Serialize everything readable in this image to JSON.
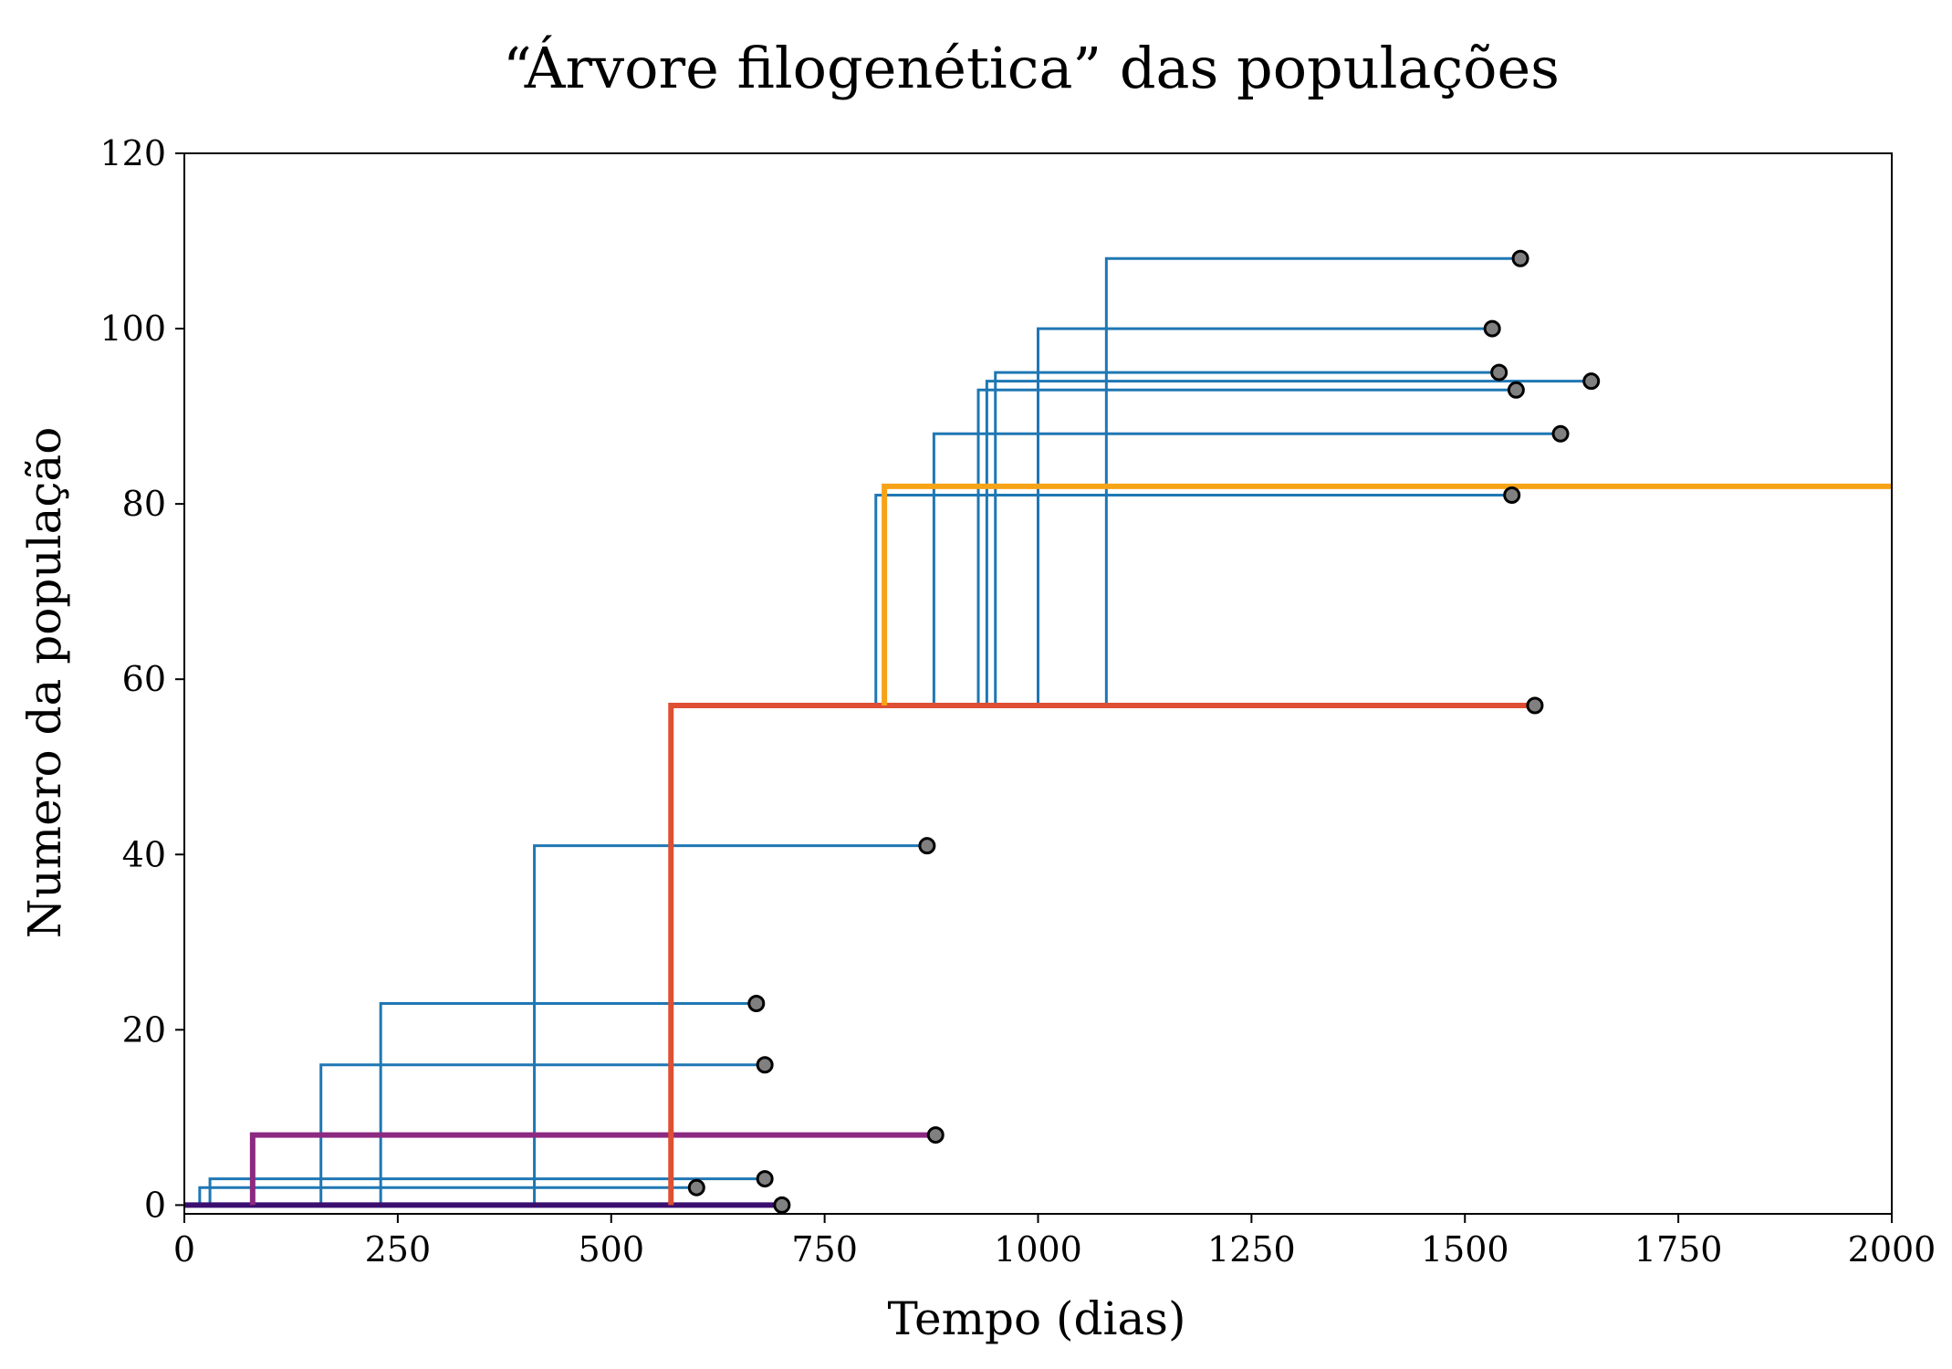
{
  "chart_data": {
    "type": "line",
    "title": "“Árvore filogenética” das populações",
    "xlabel": "Tempo (dias)",
    "ylabel": "Numero da população",
    "xlim": [
      0,
      2000
    ],
    "ylim": [
      -1,
      120
    ],
    "x_ticks": [
      0,
      250,
      500,
      750,
      1000,
      1250,
      1500,
      1750,
      2000
    ],
    "y_ticks": [
      0,
      20,
      40,
      60,
      80,
      100,
      120
    ],
    "grid": false,
    "legend": null,
    "colors": {
      "branch": "#1f77b4",
      "lineage_0": "#3b0f70",
      "lineage_8": "#8c2981",
      "lineage_57": "#de4f33",
      "lineage_82": "#f7a318",
      "endpoint_fill": "#808080",
      "endpoint_edge": "#000000"
    },
    "branches": [
      {
        "parent": 0,
        "child": 2,
        "start": 18,
        "end": 600
      },
      {
        "parent": 0,
        "child": 3,
        "start": 30,
        "end": 680
      },
      {
        "parent": 0,
        "child": 16,
        "start": 160,
        "end": 680
      },
      {
        "parent": 0,
        "child": 23,
        "start": 230,
        "end": 670
      },
      {
        "parent": 0,
        "child": 41,
        "start": 410,
        "end": 870
      },
      {
        "parent": 57,
        "child": 81,
        "start": 810,
        "end": 1555
      },
      {
        "parent": 57,
        "child": 88,
        "start": 878,
        "end": 1612
      },
      {
        "parent": 57,
        "child": 93,
        "start": 930,
        "end": 1560
      },
      {
        "parent": 57,
        "child": 94,
        "start": 940,
        "end": 1648
      },
      {
        "parent": 57,
        "child": 95,
        "start": 950,
        "end": 1540
      },
      {
        "parent": 57,
        "child": 100,
        "start": 1000,
        "end": 1532
      },
      {
        "parent": 57,
        "child": 108,
        "start": 1080,
        "end": 1565
      }
    ],
    "lineage": [
      {
        "parent": null,
        "child": 0,
        "start": 0,
        "end": 700,
        "color": "#3b0f70",
        "ended": true
      },
      {
        "parent": 0,
        "child": 8,
        "start": 80,
        "end": 880,
        "color": "#8c2981",
        "ended": true
      },
      {
        "parent": 0,
        "child": 57,
        "start": 570,
        "end": 1582,
        "color": "#de4f33",
        "ended": true
      },
      {
        "parent": 57,
        "child": 82,
        "start": 820,
        "end": 2000,
        "color": "#f7a318",
        "ended": false
      }
    ]
  }
}
